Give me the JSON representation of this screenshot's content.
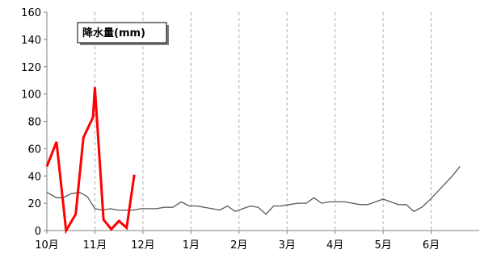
{
  "chart_data": {
    "type": "line",
    "title_box": "降水量(mm)",
    "ylim": [
      0,
      160
    ],
    "yticks": [
      0,
      20,
      40,
      60,
      80,
      100,
      120,
      140,
      160
    ],
    "x_range": [
      0,
      45
    ],
    "x_tick_positions": [
      0,
      5,
      10,
      15,
      20,
      25,
      30,
      35,
      40
    ],
    "x_tick_labels": [
      "10月",
      "11月",
      "12月",
      "1月",
      "2月",
      "3月",
      "4月",
      "5月",
      "6月"
    ],
    "grid": "vertical-dashed",
    "series": [
      {
        "color": "#ff0000",
        "values": [
          [
            0,
            47
          ],
          [
            1,
            65
          ],
          [
            2,
            0
          ],
          [
            3,
            12
          ],
          [
            3.8,
            68
          ],
          [
            4.8,
            83
          ],
          [
            5,
            105
          ],
          [
            5.9,
            8
          ],
          [
            6.7,
            1
          ],
          [
            7.5,
            7
          ],
          [
            8.3,
            2
          ],
          [
            9.1,
            41
          ]
        ]
      },
      {
        "color": "#595959",
        "values": [
          [
            0,
            28
          ],
          [
            1,
            24
          ],
          [
            1.7,
            24
          ],
          [
            2.5,
            27
          ],
          [
            3.4,
            28
          ],
          [
            4.2,
            25
          ],
          [
            5,
            16
          ],
          [
            5.8,
            15
          ],
          [
            6.6,
            16
          ],
          [
            7.4,
            15
          ],
          [
            8.2,
            15
          ],
          [
            9,
            15
          ],
          [
            9.8,
            16
          ],
          [
            10.6,
            16
          ],
          [
            11.4,
            16
          ],
          [
            12.2,
            17
          ],
          [
            13.1,
            17
          ],
          [
            14,
            21
          ],
          [
            14.8,
            18
          ],
          [
            15.6,
            18
          ],
          [
            16.4,
            17
          ],
          [
            17.2,
            16
          ],
          [
            18,
            15
          ],
          [
            18.8,
            18
          ],
          [
            19.6,
            14
          ],
          [
            20.4,
            16
          ],
          [
            21.2,
            18
          ],
          [
            22,
            17
          ],
          [
            22.8,
            12
          ],
          [
            23.6,
            18
          ],
          [
            24.4,
            18
          ],
          [
            25.2,
            19
          ],
          [
            26.1,
            20
          ],
          [
            27,
            20
          ],
          [
            27.8,
            24
          ],
          [
            28.6,
            20
          ],
          [
            29.4,
            21
          ],
          [
            30.2,
            21
          ],
          [
            31,
            21
          ],
          [
            31.8,
            20
          ],
          [
            32.6,
            19
          ],
          [
            33.4,
            19
          ],
          [
            34.2,
            21
          ],
          [
            35,
            23
          ],
          [
            35.8,
            21
          ],
          [
            36.6,
            19
          ],
          [
            37.4,
            19
          ],
          [
            38.2,
            14
          ],
          [
            39,
            17
          ],
          [
            39.8,
            22
          ],
          [
            40.6,
            28
          ],
          [
            41.4,
            34
          ],
          [
            42.2,
            40
          ],
          [
            43,
            47
          ]
        ]
      }
    ]
  }
}
